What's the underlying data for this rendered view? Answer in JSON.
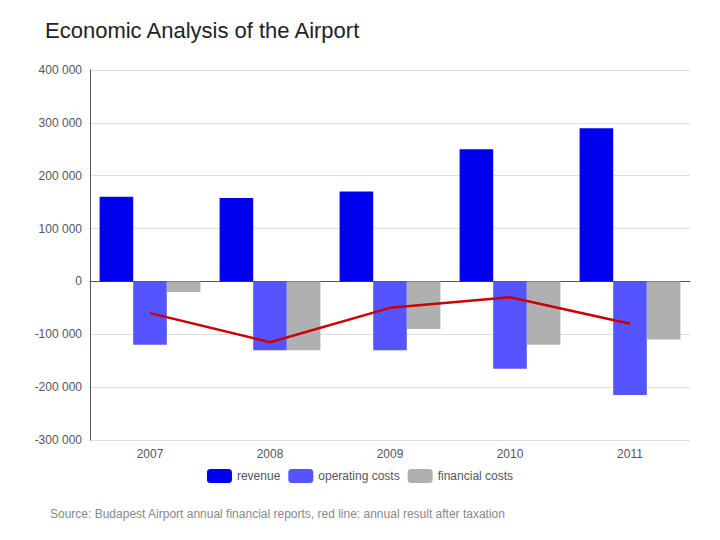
{
  "chart_data": {
    "type": "bar",
    "title": "Economic Analysis of the Airport",
    "annotations": [
      "Source: Budapest Airport annual financial reports, red line: annual result after taxation"
    ],
    "categories": [
      "2007",
      "2008",
      "2009",
      "2010",
      "2011"
    ],
    "series": [
      {
        "name": "revenue",
        "type": "bar",
        "color": "#0000EE",
        "values": [
          160000,
          158000,
          170000,
          250000,
          290000
        ]
      },
      {
        "name": "operating costs",
        "type": "bar",
        "color": "#5555FF",
        "values": [
          -120000,
          -130000,
          -130000,
          -165000,
          -215000
        ]
      },
      {
        "name": "financial costs",
        "type": "bar",
        "color": "#B0B0B0",
        "values": [
          -20000,
          -130000,
          -90000,
          -120000,
          -110000
        ]
      },
      {
        "type": "line",
        "color": "#CC0000",
        "values": [
          -60000,
          -115000,
          -50000,
          -30000,
          -80000
        ]
      }
    ],
    "ylim": [
      -300000,
      400000
    ],
    "yticks": [
      {
        "value": -300000,
        "label": "-300 000"
      },
      {
        "value": -200000,
        "label": "-200 000"
      },
      {
        "value": -100000,
        "label": "-100 000"
      },
      0,
      {
        "value": 100000,
        "label": "100 000"
      },
      {
        "value": 200000,
        "label": "200 000"
      },
      {
        "value": 300000,
        "label": "300 000"
      },
      {
        "value": 400000,
        "label": "400 000"
      }
    ],
    "grid": true,
    "legend": "bottom"
  }
}
